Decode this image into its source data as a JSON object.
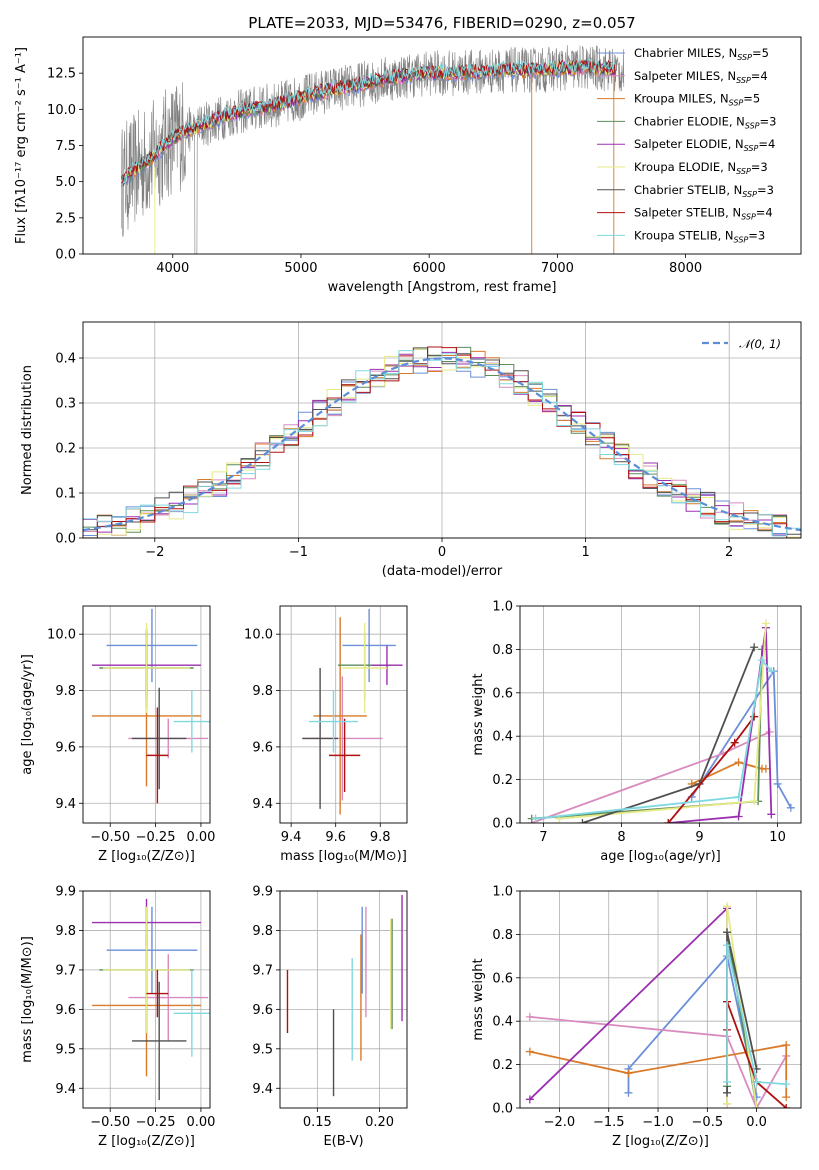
{
  "colors": [
    "#6b8fd8",
    "#d98bbf",
    "#d97a2a",
    "#5c8c5c",
    "#9a30b0",
    "#e6ea88",
    "#505050",
    "#b01010",
    "#80d8e0"
  ],
  "chart_data": [
    {
      "id": "spectrum",
      "type": "line",
      "title": "PLATE=2033, MJD=53476, FIBERID=0290, z=0.057",
      "xlabel": "wavelength [Angstrom, rest frame]",
      "ylabel": "Flux [fλ10⁻¹⁷ erg cm⁻² s⁻¹ A⁻¹]",
      "xlim": [
        3300,
        8900
      ],
      "ylim": [
        0,
        15
      ],
      "x_ticks": [
        "4000",
        "5000",
        "6000",
        "7000",
        "8000"
      ],
      "y_ticks": [
        "0.0",
        "2.5",
        "5.0",
        "7.5",
        "10.0",
        "12.5"
      ],
      "continuum": {
        "x": [
          3600,
          3700,
          3800,
          3900,
          4000,
          4100,
          4200,
          4400,
          4600,
          4800,
          5000,
          5200,
          5400,
          5600,
          5800,
          6000,
          6200,
          6400,
          6600,
          6800,
          7000,
          7200,
          7400,
          7500
        ],
        "y": [
          5.0,
          5.8,
          6.4,
          7.2,
          8.0,
          8.5,
          8.8,
          9.5,
          10.0,
          10.3,
          10.8,
          11.3,
          11.6,
          12.0,
          12.3,
          12.5,
          12.5,
          12.6,
          12.7,
          12.7,
          12.8,
          12.9,
          12.8,
          12.6
        ]
      },
      "legend": [
        {
          "name": "Chabrier MILES, N",
          "n": "5"
        },
        {
          "name": "Salpeter MILES, N",
          "n": "4"
        },
        {
          "name": "Kroupa MILES, N",
          "n": "5"
        },
        {
          "name": "Chabrier ELODIE, N",
          "n": "3"
        },
        {
          "name": "Salpeter ELODIE, N",
          "n": "4"
        },
        {
          "name": "Kroupa ELODIE, N",
          "n": "3"
        },
        {
          "name": "Chabrier STELIB, N",
          "n": "3"
        },
        {
          "name": "Salpeter STELIB, N",
          "n": "4"
        },
        {
          "name": "Kroupa STELIB, N",
          "n": "3"
        }
      ],
      "legend_sub": "SSP",
      "legend_placement": "right",
      "grid": false
    },
    {
      "id": "residuals",
      "type": "histogram",
      "xlabel": "(data-model)/error",
      "ylabel": "Normed distribution",
      "xlim": [
        -2.5,
        2.5
      ],
      "ylim": [
        0,
        0.48
      ],
      "x_ticks": [
        "−2",
        "−1",
        "0",
        "1",
        "2"
      ],
      "y_ticks": [
        "0.0",
        "0.1",
        "0.2",
        "0.3",
        "0.4"
      ],
      "legend": "𝒩(0, 1)",
      "legend_placement": "top-right",
      "grid": true
    },
    {
      "id": "age_vs_Z",
      "type": "errorbar",
      "xlabel": "Z [log₁₀(Z/Z⊙)]",
      "ylabel": "age  [log₁₀(age/yr)]",
      "xlim": [
        -0.65,
        0.05
      ],
      "ylim": [
        9.33,
        10.1
      ],
      "x_ticks": [
        "−0.50",
        "−0.25",
        "0.00"
      ],
      "y_ticks": [
        "9.4",
        "9.6",
        "9.8",
        "10.0"
      ],
      "points": [
        {
          "x": -0.27,
          "y": 9.96,
          "xerr": 0.25,
          "yerr": 0.13
        },
        {
          "x": -0.18,
          "y": 9.63,
          "xerr": 0.22,
          "yerr": 0.07
        },
        {
          "x": -0.3,
          "y": 9.71,
          "xerr": 0.3,
          "yerr": 0.25
        },
        {
          "x": -0.3,
          "y": 9.88,
          "xerr": 0.26,
          "yerr": 0.14
        },
        {
          "x": -0.3,
          "y": 9.89,
          "xerr": 0.3,
          "yerr": 0.12
        },
        {
          "x": -0.3,
          "y": 9.88,
          "xerr": 0.24,
          "yerr": 0.16
        },
        {
          "x": -0.23,
          "y": 9.63,
          "xerr": 0.15,
          "yerr": 0.18
        },
        {
          "x": -0.24,
          "y": 9.57,
          "xerr": 0.06,
          "yerr": 0.17
        },
        {
          "x": -0.05,
          "y": 9.69,
          "xerr": 0.1,
          "yerr": 0.11
        }
      ],
      "grid": true
    },
    {
      "id": "age_vs_mass",
      "type": "errorbar",
      "xlabel": "mass [log₁₀(M/M⊙)]",
      "ylabel": "",
      "xlim": [
        9.35,
        9.92
      ],
      "ylim": [
        9.33,
        10.1
      ],
      "x_ticks": [
        "9.4",
        "9.6",
        "9.8"
      ],
      "y_ticks": [
        "9.4",
        "9.6",
        "9.8",
        "10.0"
      ],
      "points": [
        {
          "x": 9.75,
          "y": 9.96,
          "xerr": 0.12,
          "yerr": 0.13
        },
        {
          "x": 9.63,
          "y": 9.63,
          "xerr": 0.18,
          "yerr": 0.22
        },
        {
          "x": 9.62,
          "y": 9.71,
          "xerr": 0.12,
          "yerr": 0.35
        },
        {
          "x": 9.73,
          "y": 9.89,
          "xerr": 0.12,
          "yerr": 0.12
        },
        {
          "x": 9.83,
          "y": 9.89,
          "xerr": 0.07,
          "yerr": 0.07
        },
        {
          "x": 9.73,
          "y": 9.88,
          "xerr": 0.1,
          "yerr": 0.16
        },
        {
          "x": 9.53,
          "y": 9.63,
          "xerr": 0.08,
          "yerr": 0.25
        },
        {
          "x": 9.64,
          "y": 9.57,
          "xerr": 0.07,
          "yerr": 0.13
        },
        {
          "x": 9.59,
          "y": 9.69,
          "xerr": 0.11,
          "yerr": 0.11
        }
      ],
      "grid": true
    },
    {
      "id": "weight_vs_age",
      "type": "line",
      "xlabel": "age  [log₁₀(age/yr)]",
      "ylabel": "mass weight",
      "xlim": [
        6.7,
        10.3
      ],
      "ylim": [
        0,
        1
      ],
      "x_ticks": [
        "7",
        "8",
        "9",
        "10"
      ],
      "y_ticks": [
        "0.0",
        "0.2",
        "0.4",
        "0.6",
        "0.8",
        "1.0"
      ],
      "series": [
        {
          "x": [
            8.9,
            9.95,
            10.0,
            10.17
          ],
          "y": [
            0.12,
            0.7,
            0.18,
            0.07
          ]
        },
        {
          "x": [
            6.85,
            9.3,
            9.9
          ],
          "y": [
            0.0,
            0.32,
            0.42
          ]
        },
        {
          "x": [
            8.9,
            9.5,
            9.8,
            9.85
          ],
          "y": [
            0.18,
            0.28,
            0.25,
            0.25
          ]
        },
        {
          "x": [
            6.85,
            9.75,
            9.8
          ],
          "y": [
            0.02,
            0.1,
            0.8
          ]
        },
        {
          "x": [
            8.6,
            9.5,
            9.85,
            9.92
          ],
          "y": [
            0.0,
            0.03,
            0.9,
            0.04
          ]
        },
        {
          "x": [
            7.2,
            9.7,
            9.85
          ],
          "y": [
            0.02,
            0.1,
            0.92
          ]
        },
        {
          "x": [
            7.5,
            9.0,
            9.7
          ],
          "y": [
            0.0,
            0.18,
            0.81
          ]
        },
        {
          "x": [
            8.6,
            9.45,
            9.7
          ],
          "y": [
            0.0,
            0.37,
            0.49
          ]
        },
        {
          "x": [
            6.9,
            9.5,
            9.8,
            9.92
          ],
          "y": [
            0.02,
            0.12,
            0.75,
            0.7
          ]
        }
      ],
      "grid": true
    },
    {
      "id": "mass_vs_Z",
      "type": "errorbar",
      "xlabel": "Z [log₁₀(Z/Z⊙)]",
      "ylabel": "mass [log₁₀(M/M⊙)]",
      "xlim": [
        -0.65,
        0.05
      ],
      "ylim": [
        9.35,
        9.9
      ],
      "x_ticks": [
        "−0.50",
        "−0.25",
        "0.00"
      ],
      "y_ticks": [
        "9.4",
        "9.5",
        "9.6",
        "9.7",
        "9.8",
        "9.9"
      ],
      "points": [
        {
          "x": -0.27,
          "y": 9.75,
          "xerr": 0.25,
          "yerr": 0.11
        },
        {
          "x": -0.18,
          "y": 9.63,
          "xerr": 0.22,
          "yerr": 0.11
        },
        {
          "x": -0.3,
          "y": 9.61,
          "xerr": 0.3,
          "yerr": 0.18
        },
        {
          "x": -0.3,
          "y": 9.7,
          "xerr": 0.26,
          "yerr": 0.16
        },
        {
          "x": -0.3,
          "y": 9.82,
          "xerr": 0.3,
          "yerr": 0.06
        },
        {
          "x": -0.3,
          "y": 9.7,
          "xerr": 0.24,
          "yerr": 0.16
        },
        {
          "x": -0.23,
          "y": 9.52,
          "xerr": 0.15,
          "yerr": 0.15
        },
        {
          "x": -0.24,
          "y": 9.64,
          "xerr": 0.06,
          "yerr": 0.06
        },
        {
          "x": -0.05,
          "y": 9.59,
          "xerr": 0.1,
          "yerr": 0.11
        }
      ],
      "grid": true
    },
    {
      "id": "mass_vs_ebv",
      "type": "errorbar",
      "xlabel": "E(B-V)",
      "ylabel": "",
      "xlim": [
        0.12,
        0.222
      ],
      "ylim": [
        9.35,
        9.9
      ],
      "x_ticks": [
        "0.15",
        "0.20"
      ],
      "y_ticks": [
        "9.4",
        "9.5",
        "9.6",
        "9.7",
        "9.8",
        "9.9"
      ],
      "points": [
        {
          "x": 0.186,
          "y": 9.75,
          "xerr": 0,
          "yerr": 0.11
        },
        {
          "x": 0.189,
          "y": 9.72,
          "xerr": 0,
          "yerr": 0.14
        },
        {
          "x": 0.185,
          "y": 9.63,
          "xerr": 0,
          "yerr": 0.16
        },
        {
          "x": 0.21,
          "y": 9.69,
          "xerr": 0,
          "yerr": 0.14
        },
        {
          "x": 0.218,
          "y": 9.73,
          "xerr": 0,
          "yerr": 0.16
        },
        {
          "x": 0.209,
          "y": 9.69,
          "xerr": 0,
          "yerr": 0.14
        },
        {
          "x": 0.163,
          "y": 9.49,
          "xerr": 0,
          "yerr": 0.11
        },
        {
          "x": 0.126,
          "y": 9.62,
          "xerr": 0,
          "yerr": 0.08
        },
        {
          "x": 0.178,
          "y": 9.6,
          "xerr": 0,
          "yerr": 0.13
        }
      ],
      "grid": true
    },
    {
      "id": "weight_vs_Z",
      "type": "line",
      "xlabel": "Z [log₁₀(Z/Z⊙)]",
      "ylabel": "mass weight",
      "xlim": [
        -2.4,
        0.45
      ],
      "ylim": [
        0,
        1
      ],
      "x_ticks": [
        "−2.0",
        "−1.5",
        "−1.0",
        "−0.5",
        "0.0"
      ],
      "y_ticks": [
        "0.0",
        "0.2",
        "0.4",
        "0.6",
        "0.8",
        "1.0"
      ],
      "series": [
        {
          "x": [
            -1.3,
            -1.3,
            -0.3,
            0.0
          ],
          "y": [
            0.07,
            0.18,
            0.7,
            0.05
          ]
        },
        {
          "x": [
            -2.3,
            -0.3,
            0.0,
            0.3
          ],
          "y": [
            0.42,
            0.33,
            0.0,
            0.24
          ]
        },
        {
          "x": [
            -2.3,
            -1.3,
            0.3,
            0.3
          ],
          "y": [
            0.26,
            0.16,
            0.29,
            0.05
          ]
        },
        {
          "x": [
            -0.3,
            -0.3,
            0.0
          ],
          "y": [
            0.1,
            0.81,
            0.0
          ]
        },
        {
          "x": [
            -2.3,
            -0.3,
            -0.3
          ],
          "y": [
            0.04,
            0.92,
            0.02
          ]
        },
        {
          "x": [
            -0.3,
            -0.3,
            0.0
          ],
          "y": [
            0.02,
            0.93,
            0.0
          ]
        },
        {
          "x": [
            -0.3,
            -0.3,
            0.0
          ],
          "y": [
            0.07,
            0.81,
            0.18
          ]
        },
        {
          "x": [
            -0.3,
            -0.3,
            0.0,
            0.3
          ],
          "y": [
            0.36,
            0.49,
            0.12,
            0.0
          ]
        },
        {
          "x": [
            -0.3,
            -0.3,
            0.0,
            0.3
          ],
          "y": [
            0.12,
            0.75,
            0.12,
            0.11
          ]
        }
      ],
      "grid": true
    }
  ]
}
